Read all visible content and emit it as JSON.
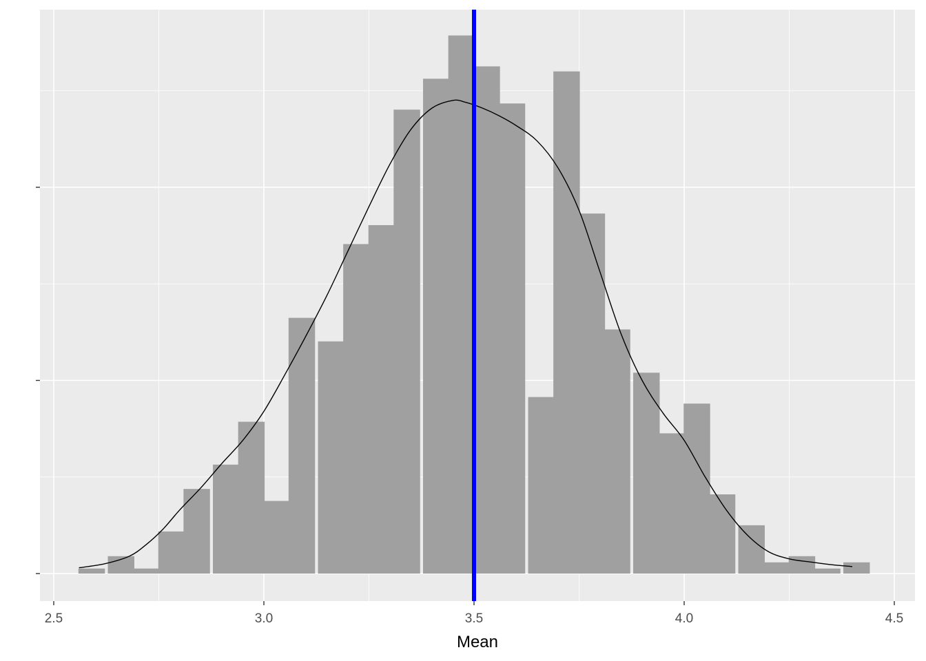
{
  "chart_data": {
    "type": "bar",
    "subtype": "histogram-with-density",
    "title": "",
    "xlabel": "Mean",
    "ylabel": "",
    "xlim": [
      2.5,
      4.5
    ],
    "ylim": [
      0,
      1.37
    ],
    "x_ticks": [
      "2.5",
      "3.0",
      "3.5",
      "4.0",
      "4.5"
    ],
    "x_tick_values": [
      2.5,
      3.0,
      3.5,
      4.0,
      4.5
    ],
    "y_tick_values": [
      0,
      0.5,
      1.0
    ],
    "y_tick_labels_visible": false,
    "grid": true,
    "bin_width": 0.0625,
    "bins": [
      {
        "x": 2.59,
        "height": 0.013
      },
      {
        "x": 2.66,
        "height": 0.045
      },
      {
        "x": 2.72,
        "height": 0.013
      },
      {
        "x": 2.78,
        "height": 0.109
      },
      {
        "x": 2.84,
        "height": 0.219
      },
      {
        "x": 2.91,
        "height": 0.282
      },
      {
        "x": 2.97,
        "height": 0.393
      },
      {
        "x": 3.03,
        "height": 0.188
      },
      {
        "x": 3.09,
        "height": 0.662
      },
      {
        "x": 3.16,
        "height": 0.601
      },
      {
        "x": 3.22,
        "height": 0.853
      },
      {
        "x": 3.28,
        "height": 0.902
      },
      {
        "x": 3.34,
        "height": 1.201
      },
      {
        "x": 3.41,
        "height": 1.281
      },
      {
        "x": 3.47,
        "height": 1.393
      },
      {
        "x": 3.53,
        "height": 1.313
      },
      {
        "x": 3.59,
        "height": 1.217
      },
      {
        "x": 3.66,
        "height": 0.457
      },
      {
        "x": 3.72,
        "height": 1.3
      },
      {
        "x": 3.78,
        "height": 0.932
      },
      {
        "x": 3.84,
        "height": 0.632
      },
      {
        "x": 3.91,
        "height": 0.52
      },
      {
        "x": 3.97,
        "height": 0.363
      },
      {
        "x": 4.03,
        "height": 0.44
      },
      {
        "x": 4.09,
        "height": 0.205
      },
      {
        "x": 4.16,
        "height": 0.125
      },
      {
        "x": 4.22,
        "height": 0.029
      },
      {
        "x": 4.28,
        "height": 0.045
      },
      {
        "x": 4.34,
        "height": 0.013
      },
      {
        "x": 4.41,
        "height": 0.029
      }
    ],
    "density_curve": {
      "x": [
        2.56,
        2.62,
        2.68,
        2.72,
        2.76,
        2.8,
        2.85,
        2.9,
        2.95,
        3.0,
        3.05,
        3.1,
        3.15,
        3.2,
        3.25,
        3.3,
        3.35,
        3.4,
        3.45,
        3.48,
        3.52,
        3.56,
        3.6,
        3.65,
        3.7,
        3.75,
        3.8,
        3.85,
        3.9,
        3.95,
        4.0,
        4.05,
        4.1,
        4.15,
        4.2,
        4.25,
        4.3,
        4.35,
        4.4
      ],
      "y": [
        0.015,
        0.025,
        0.045,
        0.075,
        0.115,
        0.165,
        0.222,
        0.285,
        0.345,
        0.42,
        0.515,
        0.615,
        0.72,
        0.835,
        0.95,
        1.06,
        1.15,
        1.205,
        1.225,
        1.22,
        1.205,
        1.185,
        1.16,
        1.12,
        1.05,
        0.94,
        0.78,
        0.62,
        0.5,
        0.415,
        0.345,
        0.25,
        0.165,
        0.1,
        0.057,
        0.038,
        0.03,
        0.023,
        0.018
      ]
    },
    "vline": {
      "x": 3.5
    },
    "colors": {
      "panel_background": "#ebebeb",
      "grid_major": "#ffffff",
      "bar_fill": "#a0a0a0",
      "density_line": "#000000",
      "vline": "#0000ff",
      "tick_label": "#4d4d4d",
      "axis_tick": "#333333"
    }
  }
}
